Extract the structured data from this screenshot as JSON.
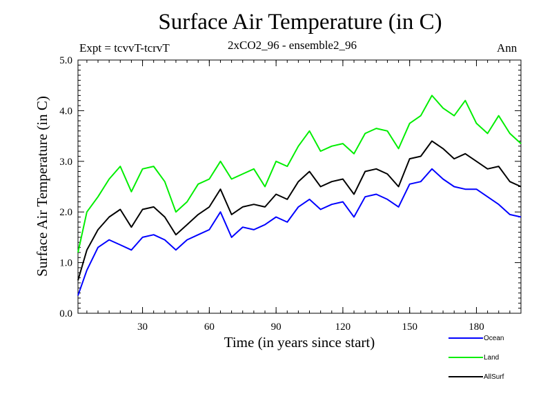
{
  "chart_data": {
    "type": "line",
    "title": "Surface Air Temperature (in C)",
    "subtitle": "2xCO2_96 - ensemble2_96",
    "left_label": "Expt = tcvvT-tcrvT",
    "right_label": "Ann",
    "xlabel": "Time (in years since start)",
    "ylabel": "Surface Air Temperature (in C)",
    "xlim": [
      1,
      200
    ],
    "ylim": [
      0,
      5
    ],
    "x_ticks": [
      30,
      60,
      90,
      120,
      150,
      180
    ],
    "y_ticks": [
      0,
      1,
      2,
      3,
      4,
      5
    ],
    "y_tick_labels": [
      "0.0",
      "1.0",
      "2.0",
      "3.0",
      "4.0",
      "5.0"
    ],
    "legend_placement": "bottom-right, outside plot",
    "x_step": 5,
    "series": [
      {
        "name": "Ocean",
        "color": "#0000ff",
        "x": [
          1,
          5,
          10,
          15,
          20,
          25,
          30,
          35,
          40,
          45,
          50,
          55,
          60,
          65,
          70,
          75,
          80,
          85,
          90,
          95,
          100,
          105,
          110,
          115,
          120,
          125,
          130,
          135,
          140,
          145,
          150,
          155,
          160,
          165,
          170,
          175,
          180,
          185,
          190,
          195,
          200
        ],
        "values": [
          0.35,
          0.85,
          1.3,
          1.45,
          1.35,
          1.25,
          1.5,
          1.55,
          1.45,
          1.25,
          1.45,
          1.55,
          1.65,
          2.0,
          1.5,
          1.7,
          1.65,
          1.75,
          1.9,
          1.8,
          2.1,
          2.25,
          2.05,
          2.15,
          2.2,
          1.9,
          2.3,
          2.35,
          2.25,
          2.1,
          2.55,
          2.6,
          2.85,
          2.65,
          2.5,
          2.45,
          2.45,
          2.3,
          2.15,
          1.95,
          1.9
        ]
      },
      {
        "name": "Land",
        "color": "#00ee00",
        "x": [
          1,
          5,
          10,
          15,
          20,
          25,
          30,
          35,
          40,
          45,
          50,
          55,
          60,
          65,
          70,
          75,
          80,
          85,
          90,
          95,
          100,
          105,
          110,
          115,
          120,
          125,
          130,
          135,
          140,
          145,
          150,
          155,
          160,
          165,
          170,
          175,
          180,
          185,
          190,
          195,
          200
        ],
        "values": [
          1.2,
          2.0,
          2.3,
          2.65,
          2.9,
          2.4,
          2.85,
          2.9,
          2.6,
          2.0,
          2.2,
          2.55,
          2.65,
          3.0,
          2.65,
          2.75,
          2.85,
          2.5,
          3.0,
          2.9,
          3.3,
          3.6,
          3.2,
          3.3,
          3.35,
          3.15,
          3.55,
          3.65,
          3.6,
          3.25,
          3.75,
          3.9,
          4.3,
          4.05,
          3.9,
          4.2,
          3.75,
          3.55,
          3.9,
          3.55,
          3.35
        ]
      },
      {
        "name": "AllSurf",
        "color": "#000000",
        "x": [
          1,
          5,
          10,
          15,
          20,
          25,
          30,
          35,
          40,
          45,
          50,
          55,
          60,
          65,
          70,
          75,
          80,
          85,
          90,
          95,
          100,
          105,
          110,
          115,
          120,
          125,
          130,
          135,
          140,
          145,
          150,
          155,
          160,
          165,
          170,
          175,
          180,
          185,
          190,
          195,
          200
        ],
        "values": [
          0.65,
          1.25,
          1.65,
          1.9,
          2.05,
          1.7,
          2.05,
          2.1,
          1.9,
          1.55,
          1.75,
          1.95,
          2.1,
          2.45,
          1.95,
          2.1,
          2.15,
          2.1,
          2.35,
          2.25,
          2.6,
          2.8,
          2.5,
          2.6,
          2.65,
          2.35,
          2.8,
          2.85,
          2.75,
          2.5,
          3.05,
          3.1,
          3.4,
          3.25,
          3.05,
          3.15,
          3.0,
          2.85,
          2.9,
          2.6,
          2.5
        ]
      }
    ]
  }
}
